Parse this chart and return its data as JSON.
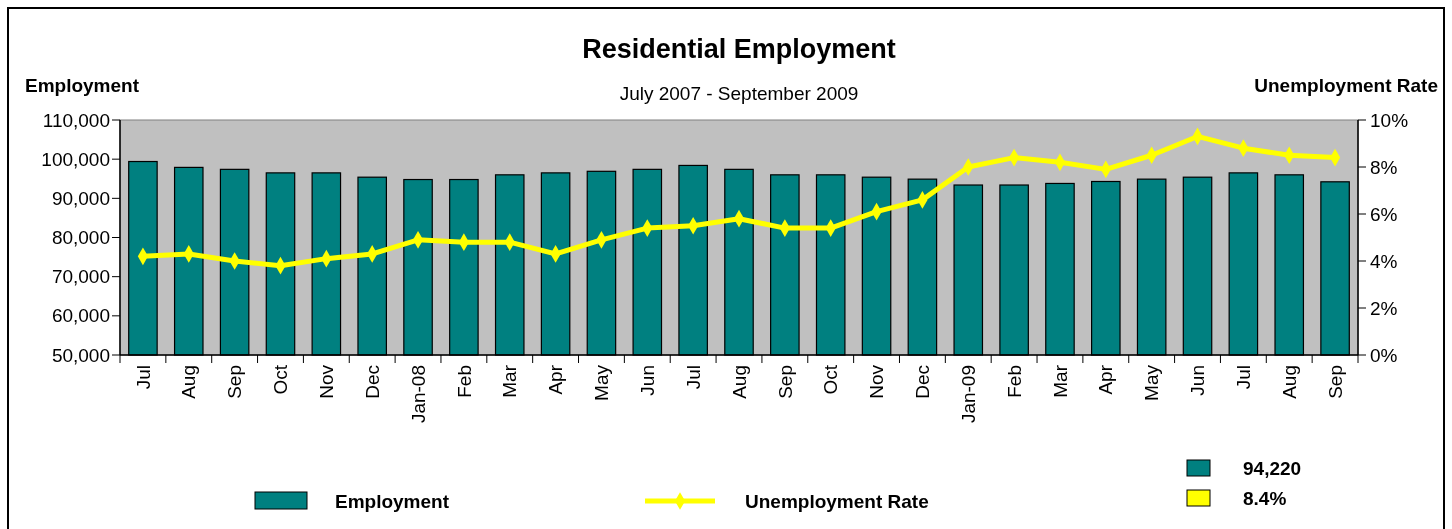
{
  "chart_data": {
    "type": "bar",
    "title": "Residential Employment",
    "subtitle": "July 2007 - September 2009",
    "ylabel": "Employment",
    "y2label": "Unemployment Rate",
    "categories": [
      "Jul",
      "Aug",
      "Sep",
      "Oct",
      "Nov",
      "Dec",
      "Jan-08",
      "Feb",
      "Mar",
      "Apr",
      "May",
      "Jun",
      "Jul",
      "Aug",
      "Sep",
      "Oct",
      "Nov",
      "Dec",
      "Jan-09",
      "Feb",
      "Mar",
      "Apr",
      "May",
      "Jun",
      "Jul",
      "Aug",
      "Sep"
    ],
    "series": [
      {
        "name": "Employment",
        "color": "#008080",
        "values": [
          99400,
          97900,
          97400,
          96500,
          96500,
          95400,
          94800,
          94800,
          96000,
          96500,
          96900,
          97400,
          98400,
          97400,
          96000,
          96000,
          95400,
          94900,
          93400,
          93400,
          93800,
          94300,
          94900,
          95400,
          96500,
          96000,
          94220
        ]
      },
      {
        "name": "Unemployment Rate",
        "type": "line",
        "axis": "y2",
        "color": "#ffff00",
        "values": [
          4.2,
          4.3,
          4.0,
          3.8,
          4.1,
          4.3,
          4.9,
          4.8,
          4.8,
          4.3,
          4.9,
          5.4,
          5.5,
          5.8,
          5.4,
          5.4,
          6.1,
          6.6,
          8.0,
          8.4,
          8.2,
          7.9,
          8.5,
          9.3,
          8.8,
          8.5,
          8.4
        ]
      }
    ],
    "ylim": [
      50000,
      110000
    ],
    "yticks": [
      {
        "value": 50000,
        "label": "50,000"
      },
      {
        "value": 60000,
        "label": "60,000"
      },
      {
        "value": 70000,
        "label": "70,000"
      },
      {
        "value": 80000,
        "label": "80,000"
      },
      {
        "value": 90000,
        "label": "90,000"
      },
      {
        "value": 100000,
        "label": "100,000"
      },
      {
        "value": 110000,
        "label": "110,000"
      }
    ],
    "y2lim": [
      0,
      10
    ],
    "y2ticks": [
      {
        "value": 0,
        "label": "0%"
      },
      {
        "value": 2,
        "label": "2%"
      },
      {
        "value": 4,
        "label": "4%"
      },
      {
        "value": 6,
        "label": "6%"
      },
      {
        "value": 8,
        "label": "8%"
      },
      {
        "value": 10,
        "label": "10%"
      }
    ],
    "annotations": [
      "94,220",
      "8.4%"
    ],
    "grid": false,
    "legend": "bottom",
    "marker": "diamond",
    "line_style": "solid"
  }
}
